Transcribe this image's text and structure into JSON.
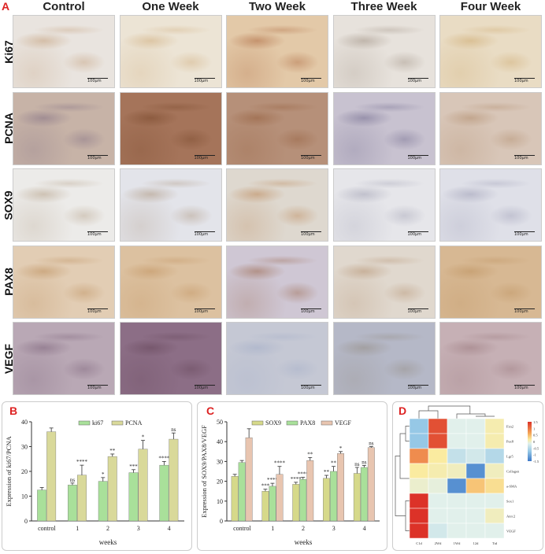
{
  "panel_a": {
    "letter": "A",
    "columns": [
      "Control",
      "One Week",
      "Two Week",
      "Three Week",
      "Four Week"
    ],
    "rows": [
      {
        "label": "Ki67",
        "colors": [
          "#e9e4df",
          "#ece4d5",
          "#e3c9a8",
          "#e7e2dc",
          "#e9dcc4"
        ],
        "accents": [
          "#b88a5c",
          "#c89d63",
          "#9c4a1e",
          "#8b7a6a",
          "#c59a55"
        ]
      },
      {
        "label": "PCNA",
        "colors": [
          "#c7b3a7",
          "#a5745a",
          "#b69079",
          "#c8c2d0",
          "#d8c6b8"
        ],
        "accents": [
          "#6d5a78",
          "#6b3a1c",
          "#8a4f2a",
          "#58517a",
          "#a57b55"
        ]
      },
      {
        "label": "SOX9",
        "colors": [
          "#ecebe9",
          "#e3e4ea",
          "#ded8cf",
          "#e6e6ea",
          "#dfe0e8"
        ],
        "accents": [
          "#a48a6b",
          "#9c7e5e",
          "#b06d31",
          "#8e8ea4",
          "#8a8aa6"
        ]
      },
      {
        "label": "PAX8",
        "colors": [
          "#e2cdb4",
          "#dcc1a0",
          "#cfc7d4",
          "#e0d8ce",
          "#d7b893"
        ],
        "accents": [
          "#b07a3f",
          "#b9844b",
          "#8b4a22",
          "#a87d55",
          "#b5864f"
        ]
      },
      {
        "label": "VEGF",
        "colors": [
          "#b9a8b5",
          "#8c6e86",
          "#c5c8d4",
          "#b5b8c7",
          "#c6b0b5"
        ],
        "accents": [
          "#6a4e68",
          "#5a3a4c",
          "#9aa6c4",
          "#8a7f6e",
          "#8e6a6e"
        ]
      }
    ],
    "scale_text": "100μm"
  },
  "panel_b": {
    "letter": "B",
    "chart_data": {
      "type": "bar",
      "categories": [
        "control",
        "1",
        "2",
        "3",
        "4"
      ],
      "series": [
        {
          "name": "ki67",
          "values": [
            12.5,
            14.5,
            16,
            19.5,
            22.5
          ],
          "errors": [
            1,
            0.8,
            1.5,
            1.2,
            1.5
          ],
          "sig": [
            "",
            "ns",
            "*",
            "***",
            "****"
          ],
          "color": "#a9e09a"
        },
        {
          "name": "PCNA",
          "values": [
            36,
            18.5,
            26,
            29,
            33
          ],
          "errors": [
            1.5,
            4,
            1,
            3.5,
            2.5
          ],
          "sig": [
            "",
            "****",
            "**",
            "*",
            "ns"
          ],
          "color": "#d9d99a"
        }
      ],
      "xlabel": "weeks",
      "ylabel": "Expression of ki67/PCNA",
      "ylim": [
        0,
        40
      ],
      "yticks": [
        "0",
        "10",
        "20",
        "30",
        "40"
      ]
    }
  },
  "panel_c": {
    "letter": "C",
    "chart_data": {
      "type": "bar",
      "categories": [
        "control",
        "1",
        "2",
        "3",
        "4"
      ],
      "series": [
        {
          "name": "SOX9",
          "values": [
            22.5,
            15,
            18.5,
            21.5,
            24
          ],
          "errors": [
            1,
            1,
            1,
            1.5,
            3
          ],
          "sig": [
            "",
            "***",
            "****",
            "**",
            "ns"
          ],
          "color": "#d6d98a"
        },
        {
          "name": "PAX8",
          "values": [
            29.5,
            17.5,
            21,
            25,
            27
          ],
          "errors": [
            1,
            1.5,
            1,
            2.5,
            1
          ],
          "sig": [
            "",
            "****",
            "****",
            "**",
            "ns"
          ],
          "color": "#a9e09a"
        },
        {
          "name": "VEGF",
          "values": [
            42,
            23.5,
            30.5,
            34,
            37
          ],
          "errors": [
            4.5,
            4,
            1.5,
            1,
            0.5
          ],
          "sig": [
            "",
            "****",
            "**",
            "*",
            "ns"
          ],
          "color": "#e8c5b0"
        }
      ],
      "xlabel": "weeks",
      "ylabel": "Expression of SOX9/PAX8/VEGF",
      "ylim": [
        0,
        50
      ],
      "yticks": [
        "0",
        "10",
        "20",
        "30",
        "40",
        "50"
      ]
    }
  },
  "panel_d": {
    "letter": "D",
    "chart_data": {
      "type": "heatmap",
      "rows": [
        "Fzn2",
        "Pax8",
        "Lgr5",
        "Collagen",
        "a-SMA",
        "Sox1",
        "Anrc2",
        "VEGF"
      ],
      "cols": [
        "C1d",
        "2Wd",
        "1Wd",
        "12d",
        "Ttd"
      ],
      "values": [
        [
          -0.5,
          1.6,
          0,
          0,
          0.4
        ],
        [
          -0.5,
          1.6,
          0,
          0,
          0.4
        ],
        [
          1.2,
          0.5,
          -0.2,
          -0.1,
          -0.3
        ],
        [
          0.5,
          0.4,
          0.3,
          -1.2,
          0.3
        ],
        [
          0.2,
          0.1,
          -1.2,
          0.8,
          0.6
        ],
        [
          1.8,
          0,
          0,
          0,
          0
        ],
        [
          1.8,
          0,
          0,
          0,
          0.3
        ],
        [
          1.8,
          -0.1,
          0,
          0,
          0
        ]
      ],
      "legend_ticks": [
        "1.5",
        "1",
        "0.5",
        "0",
        "-0.5",
        "-1",
        "-1.5"
      ]
    }
  }
}
